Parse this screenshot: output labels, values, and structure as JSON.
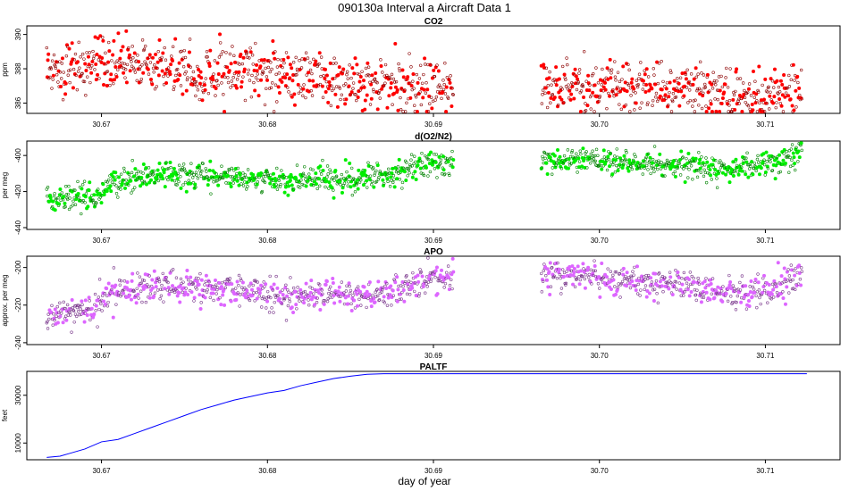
{
  "page_title": "090130a   Interval a Aircraft Data 1",
  "x_axis_label": "day of year",
  "chart_data": [
    {
      "type": "scatter",
      "title": "CO2",
      "ylabel": "ppm",
      "color": "#ff0000",
      "xlim": [
        30.6655,
        30.7145
      ],
      "ylim": [
        385.4,
        390.5
      ],
      "yticks": [
        386,
        388,
        390
      ],
      "ytick_labels": [
        "386",
        "388",
        "390"
      ],
      "xticks": [
        30.67,
        30.68,
        30.69,
        30.7,
        30.71
      ],
      "xtick_labels": [
        "30.67",
        "30.68",
        "30.69",
        "30.70",
        "30.71"
      ],
      "series": [
        {
          "name": "CO2",
          "segments": [
            {
              "x": [
                30.6667,
                30.67,
                30.672,
                30.674,
                30.676,
                30.678,
                30.68,
                30.682,
                30.684,
                30.686,
                30.688,
                30.6912
              ],
              "y": [
                388.0,
                388.1,
                388.3,
                388.0,
                387.6,
                388.1,
                387.8,
                387.4,
                387.3,
                387.0,
                387.1,
                386.9
              ]
            },
            {
              "x": [
                30.6965,
                30.698,
                30.7,
                30.702,
                30.704,
                30.706,
                30.708,
                30.71,
                30.711,
                30.7122
              ],
              "y": [
                386.9,
                387.0,
                386.8,
                387.1,
                386.9,
                386.8,
                386.5,
                386.4,
                386.5,
                386.5
              ]
            }
          ],
          "noise": 0.75
        }
      ]
    },
    {
      "type": "scatter",
      "title": "d(O2/N2)",
      "ylabel": "per meg",
      "color": "#00ee00",
      "xlim": [
        30.6655,
        30.7145
      ],
      "ylim": [
        -441,
        -392
      ],
      "yticks": [
        -440,
        -420,
        -400
      ],
      "ytick_labels": [
        "-440",
        "-420",
        "-400"
      ],
      "xticks": [
        30.67,
        30.68,
        30.69,
        30.7,
        30.71
      ],
      "xtick_labels": [
        "30.67",
        "30.68",
        "30.69",
        "30.70",
        "30.71"
      ],
      "series": [
        {
          "name": "d(O2/N2)",
          "segments": [
            {
              "x": [
                30.6667,
                30.668,
                30.669,
                30.67,
                30.671,
                30.673,
                30.676,
                30.679,
                30.681,
                30.683,
                30.686,
                30.688,
                30.69,
                30.6912
              ],
              "y": [
                -425,
                -424,
                -422,
                -421,
                -414,
                -410,
                -411,
                -413,
                -414,
                -413,
                -413,
                -410,
                -404,
                -404
              ]
            },
            {
              "x": [
                30.6965,
                30.699,
                30.702,
                30.705,
                30.707,
                30.709,
                30.7105,
                30.7115,
                30.7122
              ],
              "y": [
                -403,
                -402,
                -404,
                -405,
                -408,
                -406,
                -404,
                -400,
                -398
              ]
            }
          ],
          "noise": 3.5
        }
      ]
    },
    {
      "type": "scatter",
      "title": "APO",
      "ylabel": "approx. per meg",
      "color": "#dd66ff",
      "xlim": [
        30.6655,
        30.7145
      ],
      "ylim": [
        -241,
        -194
      ],
      "yticks": [
        -240,
        -220,
        -200
      ],
      "ytick_labels": [
        "-240",
        "-220",
        "-200"
      ],
      "xticks": [
        30.67,
        30.68,
        30.69,
        30.7,
        30.71
      ],
      "xtick_labels": [
        "30.67",
        "30.68",
        "30.69",
        "30.70",
        "30.71"
      ],
      "series": [
        {
          "name": "APO",
          "segments": [
            {
              "x": [
                30.6667,
                30.668,
                30.669,
                30.67,
                30.671,
                30.673,
                30.676,
                30.679,
                30.681,
                30.683,
                30.686,
                30.688,
                30.69,
                30.6912
              ],
              "y": [
                -226,
                -225,
                -222,
                -219,
                -213,
                -210,
                -211,
                -213,
                -215,
                -214,
                -215,
                -212,
                -206,
                -205
              ]
            },
            {
              "x": [
                30.6965,
                30.699,
                30.702,
                30.705,
                30.707,
                30.709,
                30.7105,
                30.7115,
                30.7122
              ],
              "y": [
                -205,
                -204,
                -207,
                -209,
                -212,
                -213,
                -211,
                -206,
                -204
              ]
            }
          ],
          "noise": 4.0
        }
      ]
    },
    {
      "type": "line",
      "title": "PALTF",
      "ylabel": "feet",
      "color": "#0000ff",
      "xlim": [
        30.6655,
        30.7145
      ],
      "ylim": [
        3000,
        40000
      ],
      "yticks": [
        10000,
        30000
      ],
      "ytick_labels": [
        "10000",
        "30000"
      ],
      "xticks": [
        30.67,
        30.68,
        30.69,
        30.7,
        30.71
      ],
      "xtick_labels": [
        "30.67",
        "30.68",
        "30.69",
        "30.70",
        "30.71"
      ],
      "series": [
        {
          "name": "PALTF",
          "x": [
            30.6667,
            30.6675,
            30.668,
            30.669,
            30.67,
            30.671,
            30.672,
            30.673,
            30.674,
            30.675,
            30.676,
            30.677,
            30.678,
            30.679,
            30.68,
            30.681,
            30.682,
            30.683,
            30.684,
            30.685,
            30.686,
            30.687,
            30.688,
            30.69,
            30.7,
            30.71,
            30.7125
          ],
          "y": [
            4000,
            4500,
            5500,
            7500,
            10500,
            11500,
            14000,
            16500,
            19000,
            21500,
            24000,
            26000,
            28000,
            29500,
            31000,
            32000,
            34000,
            35500,
            37000,
            38000,
            38800,
            39000,
            39000,
            39000,
            39000,
            39000,
            39000
          ]
        }
      ]
    }
  ]
}
